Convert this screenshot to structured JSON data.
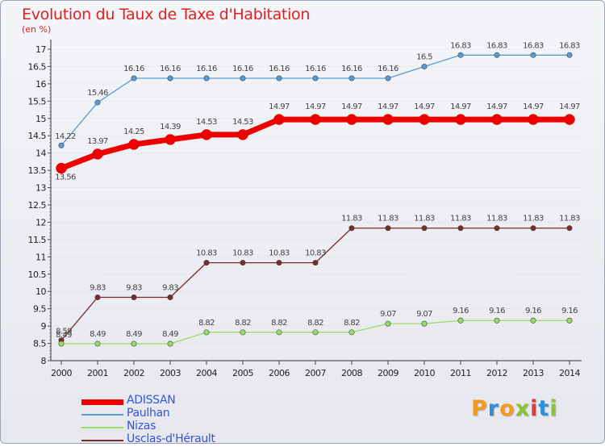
{
  "header": {
    "title": "Evolution du Taux de Taxe d'Habitation",
    "subtitle": "(en %)"
  },
  "logo": {
    "text": "Proxiti",
    "colors": [
      "#f59a1a",
      "#2f8fd8",
      "#f59a1a",
      "#8ac43a",
      "#e23a3a",
      "#2f8fd8",
      "#8ac43a"
    ]
  },
  "chart_data": {
    "type": "line",
    "title": "Evolution du Taux de Taxe d'Habitation",
    "subtitle": "(en %)",
    "xlabel": "",
    "ylabel": "",
    "x": [
      "2000",
      "2001",
      "2002",
      "2003",
      "2004",
      "2005",
      "2006",
      "2007",
      "2008",
      "2009",
      "2010",
      "2011",
      "2012",
      "2013",
      "2014"
    ],
    "ylim": [
      8,
      17
    ],
    "yticks": [
      "8",
      "8.5",
      "9",
      "9.5",
      "10",
      "10.5",
      "11",
      "11.5",
      "12",
      "12.5",
      "13",
      "13.5",
      "14",
      "14.5",
      "15",
      "15.5",
      "16",
      "16.5",
      "17"
    ],
    "grid": "horizontal dotted",
    "legend_position": "bottom-left",
    "series": [
      {
        "name": "ADISSAN",
        "color": "#ee0000",
        "values": [
          13.56,
          13.97,
          14.25,
          14.39,
          14.53,
          14.53,
          14.97,
          14.97,
          14.97,
          14.97,
          14.97,
          14.97,
          14.97,
          14.97,
          14.97
        ],
        "labels": [
          "13.56",
          "13.97",
          "14.25",
          "14.39",
          "14.53",
          "14.53",
          "14.97",
          "14.97",
          "14.97",
          "14.97",
          "14.97",
          "14.97",
          "14.97",
          "14.97",
          "14.97"
        ]
      },
      {
        "name": "Paulhan",
        "color": "#5a9bd5",
        "values": [
          14.22,
          15.46,
          16.16,
          16.16,
          16.16,
          16.16,
          16.16,
          16.16,
          16.16,
          16.16,
          16.5,
          16.83,
          16.83,
          16.83,
          16.83
        ],
        "labels": [
          "14.22",
          "15.46",
          "16.16",
          "16.16",
          "16.16",
          "16.16",
          "16.16",
          "16.16",
          "16.16",
          "16.16",
          "16.5",
          "16.83",
          "16.83",
          "16.83",
          "16.83"
        ]
      },
      {
        "name": "Nizas",
        "color": "#99dd66",
        "values": [
          8.49,
          8.49,
          8.49,
          8.49,
          8.82,
          8.82,
          8.82,
          8.82,
          8.82,
          9.07,
          9.07,
          9.16,
          9.16,
          9.16,
          9.16
        ],
        "labels": [
          "8.49",
          "8.49",
          "8.49",
          "8.49",
          "8.82",
          "8.82",
          "8.82",
          "8.82",
          "8.82",
          "9.07",
          "9.07",
          "9.16",
          "9.16",
          "9.16",
          "9.16"
        ]
      },
      {
        "name": "Usclas-d'Hérault",
        "color": "#7a2b2b",
        "values": [
          8.59,
          9.83,
          9.83,
          9.83,
          10.83,
          10.83,
          10.83,
          10.83,
          11.83,
          11.83,
          11.83,
          11.83,
          11.83,
          11.83,
          11.83
        ],
        "labels": [
          "8.59",
          "9.83",
          "9.83",
          "9.83",
          "10.83",
          "10.83",
          "10.83",
          "10.83",
          "11.83",
          "11.83",
          "11.83",
          "11.83",
          "11.83",
          "11.83",
          "11.83"
        ]
      }
    ],
    "legend_label_color": "#3355dd"
  }
}
